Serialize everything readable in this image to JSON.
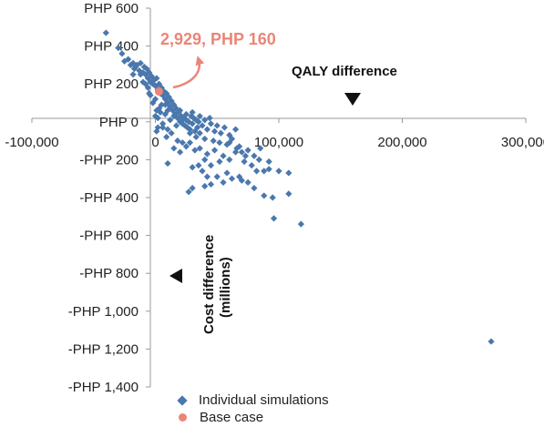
{
  "chart_data": {
    "type": "scatter",
    "title": "",
    "xlabel": "QALY difference",
    "ylabel": "Cost difference (millions)",
    "xlim": [
      -100000,
      300000
    ],
    "ylim": [
      -1400,
      600
    ],
    "x_ticks": [
      -100000,
      0,
      100000,
      200000,
      300000
    ],
    "x_tick_labels": [
      "-100,000",
      "0",
      "100,000",
      "200,000",
      "300,000"
    ],
    "y_ticks": [
      600,
      400,
      200,
      0,
      -200,
      -400,
      -600,
      -800,
      -1000,
      -1200,
      -1400
    ],
    "y_tick_labels": [
      "PHP 600",
      "PHP 400",
      "PHP 200",
      "PHP 0",
      "-PHP 200",
      "-PHP 400",
      "-PHP 600",
      "-PHP 800",
      "-PHP 1,000",
      "-PHP 1,200",
      "-PHP 1,400"
    ],
    "grid": false,
    "legend_position": "bottom",
    "series": [
      {
        "name": "Individual simulations",
        "color": "#4a78ad",
        "marker": "diamond",
        "points": [
          [
            -40000,
            470
          ],
          [
            -30000,
            390
          ],
          [
            -27000,
            360
          ],
          [
            -25000,
            320
          ],
          [
            -22000,
            330
          ],
          [
            -20000,
            300
          ],
          [
            -18000,
            310
          ],
          [
            -17000,
            280
          ],
          [
            -15000,
            300
          ],
          [
            -13000,
            270
          ],
          [
            -12000,
            310
          ],
          [
            -10000,
            260
          ],
          [
            -9000,
            290
          ],
          [
            -8000,
            250
          ],
          [
            -7000,
            280
          ],
          [
            -6000,
            230
          ],
          [
            -5000,
            260
          ],
          [
            -4000,
            210
          ],
          [
            -3000,
            240
          ],
          [
            -2000,
            200
          ],
          [
            -1000,
            220
          ],
          [
            0,
            190
          ],
          [
            1000,
            230
          ],
          [
            2000,
            170
          ],
          [
            3000,
            200
          ],
          [
            4000,
            150
          ],
          [
            5000,
            180
          ],
          [
            6000,
            140
          ],
          [
            7000,
            160
          ],
          [
            8000,
            120
          ],
          [
            9000,
            150
          ],
          [
            10000,
            100
          ],
          [
            11000,
            130
          ],
          [
            12000,
            80
          ],
          [
            13000,
            110
          ],
          [
            14000,
            60
          ],
          [
            15000,
            90
          ],
          [
            16000,
            40
          ],
          [
            17000,
            70
          ],
          [
            18000,
            20
          ],
          [
            19000,
            50
          ],
          [
            20000,
            0
          ],
          [
            21000,
            30
          ],
          [
            22000,
            -10
          ],
          [
            23000,
            20
          ],
          [
            24000,
            -20
          ],
          [
            25000,
            10
          ],
          [
            26000,
            -30
          ],
          [
            27000,
            0
          ],
          [
            28000,
            -40
          ],
          [
            29000,
            30
          ],
          [
            30000,
            -10
          ],
          [
            31000,
            20
          ],
          [
            32000,
            -50
          ],
          [
            33000,
            10
          ],
          [
            34000,
            -30
          ],
          [
            35000,
            0
          ],
          [
            36000,
            -60
          ],
          [
            38000,
            -20
          ],
          [
            40000,
            10
          ],
          [
            42000,
            -40
          ],
          [
            45000,
            -10
          ],
          [
            48000,
            -50
          ],
          [
            50000,
            -20
          ],
          [
            53000,
            -60
          ],
          [
            56000,
            -30
          ],
          [
            60000,
            -70
          ],
          [
            65000,
            -40
          ],
          [
            -5000,
            150
          ],
          [
            0,
            120
          ],
          [
            5000,
            90
          ],
          [
            10000,
            60
          ],
          [
            15000,
            30
          ],
          [
            -2000,
            100
          ],
          [
            3000,
            70
          ],
          [
            8000,
            40
          ],
          [
            12000,
            10
          ],
          [
            17000,
            -20
          ],
          [
            2000,
            20
          ],
          [
            6000,
            -10
          ],
          [
            10000,
            -40
          ],
          [
            4000,
            50
          ],
          [
            1000,
            60
          ],
          [
            0,
            30
          ],
          [
            2000,
            -30
          ],
          [
            1000,
            -50
          ],
          [
            8000,
            90
          ],
          [
            20000,
            60
          ],
          [
            25000,
            40
          ],
          [
            22000,
            10
          ],
          [
            28000,
            -60
          ],
          [
            30000,
            50
          ],
          [
            33000,
            -80
          ],
          [
            36000,
            30
          ],
          [
            40000,
            -90
          ],
          [
            44000,
            20
          ],
          [
            47000,
            -100
          ],
          [
            52000,
            -110
          ],
          [
            58000,
            -120
          ],
          [
            62000,
            -90
          ],
          [
            68000,
            -130
          ],
          [
            70000,
            -160
          ],
          [
            75000,
            -150
          ],
          [
            80000,
            -180
          ],
          [
            85000,
            -140
          ],
          [
            28000,
            -110
          ],
          [
            32000,
            -150
          ],
          [
            36000,
            -140
          ],
          [
            42000,
            -170
          ],
          [
            48000,
            -150
          ],
          [
            55000,
            -180
          ],
          [
            60000,
            -200
          ],
          [
            65000,
            -160
          ],
          [
            72000,
            -210
          ],
          [
            78000,
            -230
          ],
          [
            82000,
            -260
          ],
          [
            88000,
            -260
          ],
          [
            92000,
            -250
          ],
          [
            100000,
            -260
          ],
          [
            108000,
            -270
          ],
          [
            40000,
            -200
          ],
          [
            45000,
            -230
          ],
          [
            52000,
            -210
          ],
          [
            35000,
            -230
          ],
          [
            30000,
            -240
          ],
          [
            38000,
            -260
          ],
          [
            50000,
            -290
          ],
          [
            58000,
            -270
          ],
          [
            62000,
            -300
          ],
          [
            70000,
            -310
          ],
          [
            75000,
            -320
          ],
          [
            68000,
            -290
          ],
          [
            55000,
            -320
          ],
          [
            45000,
            -330
          ],
          [
            40000,
            -340
          ],
          [
            30000,
            -350
          ],
          [
            27000,
            -370
          ],
          [
            42000,
            -290
          ],
          [
            80000,
            -350
          ],
          [
            88000,
            -390
          ],
          [
            95000,
            -400
          ],
          [
            108000,
            -380
          ],
          [
            96000,
            -510
          ],
          [
            118000,
            -540
          ],
          [
            10000,
            -220
          ],
          [
            20000,
            -160
          ],
          [
            15000,
            -140
          ],
          [
            6000,
            -30
          ],
          [
            -8000,
            200
          ],
          [
            -12000,
            250
          ],
          [
            -16000,
            290
          ],
          [
            -18000,
            250
          ],
          [
            -10000,
            210
          ],
          [
            -6000,
            180
          ],
          [
            -4000,
            140
          ],
          [
            9000,
            -80
          ],
          [
            13000,
            -60
          ],
          [
            18000,
            -100
          ],
          [
            22000,
            -110
          ],
          [
            25000,
            -130
          ],
          [
            60000,
            -110
          ],
          [
            66000,
            -140
          ],
          [
            73000,
            -180
          ],
          [
            84000,
            -200
          ],
          [
            92000,
            -210
          ],
          [
            272000,
            -1160
          ]
        ]
      },
      {
        "name": "Base case",
        "color": "#eb8577",
        "marker": "circle",
        "points": [
          [
            2929,
            160
          ]
        ]
      }
    ],
    "annotations": {
      "base_case_label": "2,929, PHP 160",
      "x_axis_name": "QALY difference",
      "y_axis_name_line1": "Cost difference",
      "y_axis_name_line2": "(millions)"
    }
  }
}
